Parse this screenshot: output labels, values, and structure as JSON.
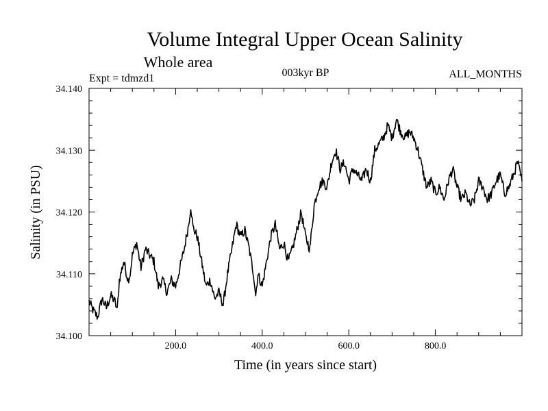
{
  "chart_data": {
    "type": "line",
    "title": "Volume Integral Upper Ocean Salinity",
    "subtitle": "Whole area",
    "experiment": "Expt = tdmzd1",
    "period": "003kyr BP",
    "months": "ALL_MONTHS",
    "xlabel": "Time (in years since start)",
    "ylabel": "Salinity (in PSU)",
    "xlim": [
      0,
      1000
    ],
    "ylim": [
      34.1,
      34.14
    ],
    "x_ticks": [
      200,
      400,
      600,
      800
    ],
    "x_tick_labels": [
      "200.0",
      "400.0",
      "600.0",
      "800.0"
    ],
    "y_ticks": [
      34.1,
      34.11,
      34.12,
      34.13,
      34.14
    ],
    "y_tick_labels": [
      "34.100",
      "34.110",
      "34.120",
      "34.130",
      "34.140"
    ],
    "grid": false,
    "series": [
      {
        "name": "Salinity",
        "color": "#000000",
        "x": [
          0,
          10,
          20,
          30,
          40,
          50,
          60,
          65,
          70,
          80,
          90,
          95,
          100,
          110,
          120,
          130,
          140,
          150,
          160,
          170,
          180,
          190,
          200,
          210,
          220,
          230,
          235,
          240,
          250,
          260,
          270,
          280,
          290,
          300,
          310,
          320,
          330,
          340,
          350,
          360,
          370,
          380,
          385,
          390,
          400,
          410,
          420,
          430,
          440,
          450,
          460,
          470,
          480,
          490,
          500,
          510,
          520,
          530,
          540,
          550,
          560,
          570,
          580,
          590,
          600,
          610,
          620,
          630,
          640,
          650,
          660,
          670,
          680,
          690,
          700,
          710,
          720,
          730,
          740,
          750,
          760,
          770,
          780,
          790,
          800,
          810,
          820,
          830,
          840,
          850,
          860,
          870,
          880,
          890,
          900,
          910,
          920,
          930,
          940,
          950,
          960,
          970,
          980,
          990,
          1000
        ],
        "values": [
          34.1055,
          34.104,
          34.103,
          34.106,
          34.1045,
          34.1065,
          34.1055,
          34.104,
          34.109,
          34.112,
          34.109,
          34.11,
          34.113,
          34.115,
          34.111,
          34.114,
          34.113,
          34.112,
          34.108,
          34.109,
          34.107,
          34.109,
          34.108,
          34.111,
          34.114,
          34.118,
          34.121,
          34.1175,
          34.116,
          34.112,
          34.108,
          34.109,
          34.106,
          34.107,
          34.105,
          34.11,
          34.114,
          34.118,
          34.116,
          34.117,
          34.114,
          34.11,
          34.1065,
          34.11,
          34.108,
          34.112,
          34.116,
          34.118,
          34.114,
          34.115,
          34.112,
          34.114,
          34.117,
          34.12,
          34.116,
          34.114,
          34.121,
          34.124,
          34.125,
          34.124,
          34.128,
          34.13,
          34.127,
          34.128,
          34.125,
          34.127,
          34.126,
          34.125,
          34.127,
          34.125,
          34.13,
          34.131,
          34.132,
          34.134,
          34.132,
          34.135,
          34.133,
          34.132,
          34.133,
          34.132,
          34.13,
          34.127,
          34.124,
          34.125,
          34.123,
          34.124,
          34.122,
          34.125,
          34.127,
          34.124,
          34.122,
          34.123,
          34.121,
          34.122,
          34.125,
          34.124,
          34.122,
          34.123,
          34.125,
          34.126,
          34.123,
          34.124,
          34.126,
          34.128,
          34.125
        ]
      }
    ]
  }
}
